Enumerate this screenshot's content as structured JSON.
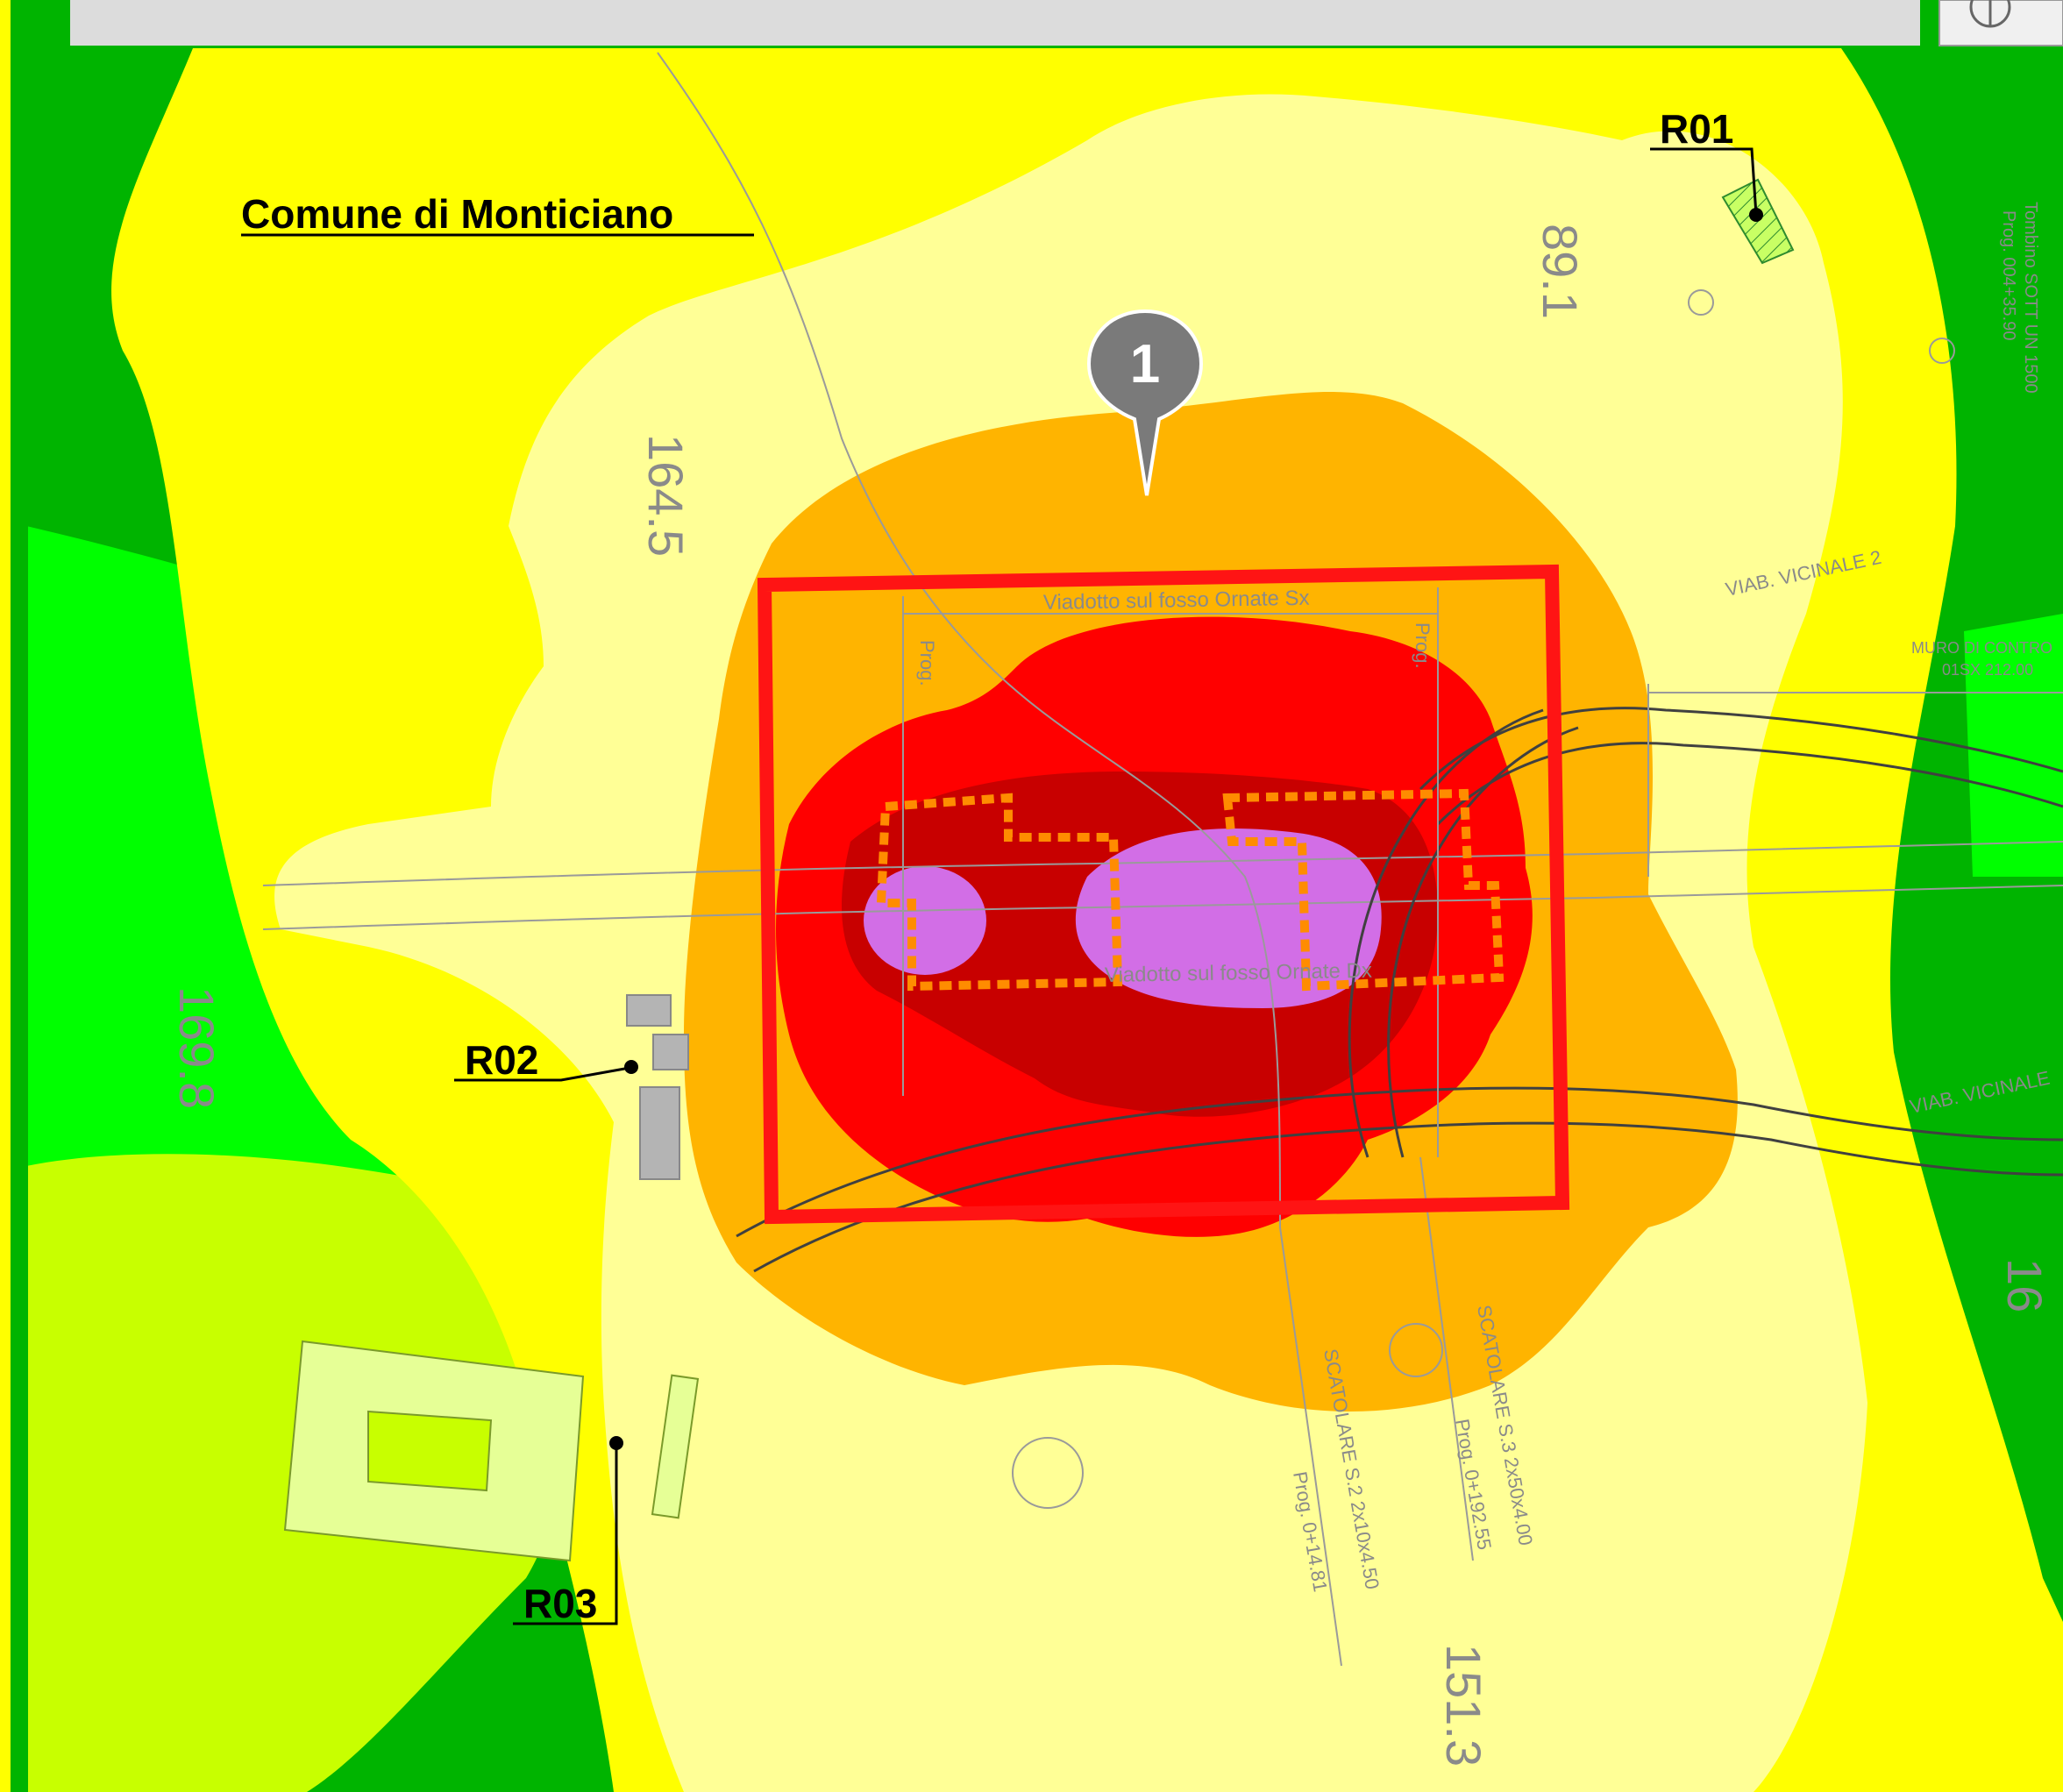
{
  "map": {
    "municipality_label": "Comune di Monticiano",
    "marker_number": "1",
    "receptors": [
      {
        "id": "r01",
        "label": "R01"
      },
      {
        "id": "r02",
        "label": "R02"
      },
      {
        "id": "r03",
        "label": "R03"
      }
    ],
    "cad_texts": {
      "viaduct_top": "Viadotto sul fosso Ornate Sx",
      "viaduct_bottom": "Viadotto sul fosso Ornate Dx",
      "prog_left": "Prog.",
      "prog_right": "Prog.",
      "viab_vicinale_top": "VIAB. VICINALE 2",
      "viab_vicinale_right": "VIAB. VICINALE",
      "muro": "MURO DI CONTRO",
      "muro_sub": "01SX 212.00",
      "tombino": "Tombino SOTT UN 1500",
      "tombino_prog": "Prog. 004+35.90",
      "elev_891": "89.1",
      "elev_1645": "164.5",
      "elev_1698": "169.8",
      "elev_151": "151.3",
      "elev_16": "16",
      "scatolare_1": "SCATOLARE S.2 2x10x4.50",
      "scatolare_1_prog": "Prog. 0+14.81",
      "scatolare_2": "SCATOLARE S.3 2x50x4.00",
      "scatolare_2_prog": "Prog. 0+192.55"
    },
    "noise_zone_colors": [
      "#00b400",
      "#00ff00",
      "#c8ff00",
      "#ffff00",
      "#ffff96",
      "#ffb400",
      "#ff0000",
      "#c80000",
      "#d26ee6"
    ],
    "site_outline_color": "#ff1414",
    "work_area_outline_color": "#ff8c00",
    "marker_color": "#7a7a7a"
  }
}
